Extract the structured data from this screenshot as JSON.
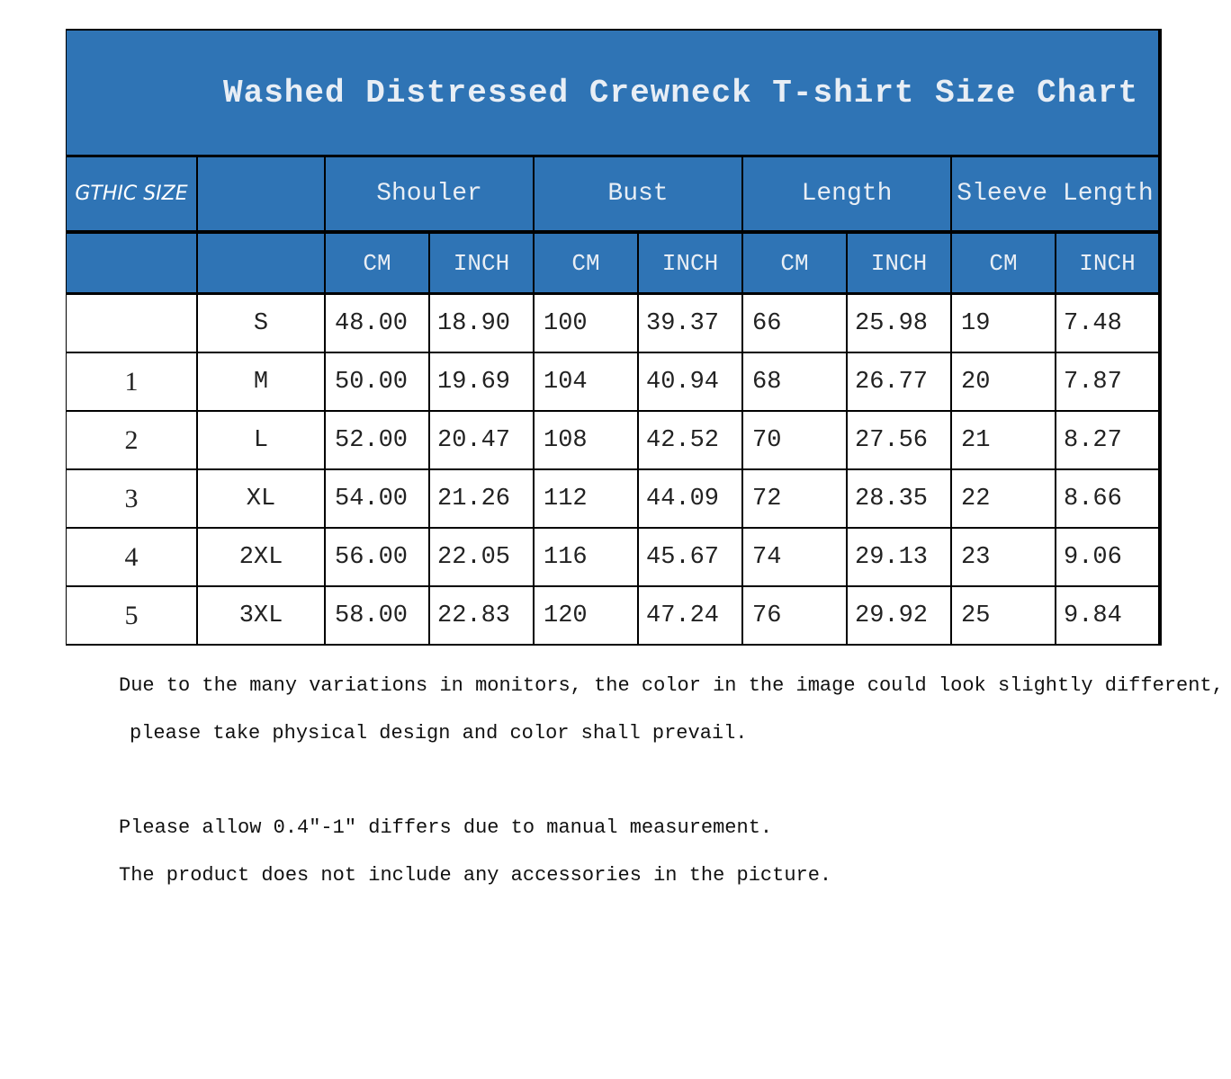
{
  "title": "Washed Distressed Crewneck T-shirt Size Chart",
  "table": {
    "header": [
      "GTHIC SIZE",
      "Shouler",
      "Bust",
      "Length",
      "Sleeve Length"
    ],
    "units": [
      "CM",
      "INCH",
      "CM",
      "INCH",
      "CM",
      "INCH",
      "CM",
      "INCH"
    ],
    "rows": [
      {
        "size": "S",
        "values": [
          "48.00",
          "18.90",
          "100",
          "39.37",
          "66",
          "25.98",
          "19",
          "7.48"
        ]
      },
      {
        "index": "1",
        "size": "M",
        "values": [
          "50.00",
          "19.69",
          "104",
          "40.94",
          "68",
          "26.77",
          "20",
          "7.87"
        ]
      },
      {
        "index": "2",
        "size": "L",
        "values": [
          "52.00",
          "20.47",
          "108",
          "42.52",
          "70",
          "27.56",
          "21",
          "8.27"
        ]
      },
      {
        "index": "3",
        "size": "XL",
        "values": [
          "54.00",
          "21.26",
          "112",
          "44.09",
          "72",
          "28.35",
          "22",
          "8.66"
        ]
      },
      {
        "index": "4",
        "size": "2XL",
        "values": [
          "56.00",
          "22.05",
          "116",
          "45.67",
          "74",
          "29.13",
          "23",
          "9.06"
        ]
      },
      {
        "index": "5",
        "size": "3XL",
        "values": [
          "58.00",
          "22.83",
          "120",
          "47.24",
          "76",
          "29.92",
          "25",
          "9.84"
        ]
      }
    ]
  },
  "notes": [
    "Due to the many variations in monitors, the color in the image could look slightly different,",
    "please take physical design and color shall prevail.",
    "Please allow 0.4\"-1\" differs due to manual measurement.",
    "The product does not include any accessories in the picture."
  ]
}
